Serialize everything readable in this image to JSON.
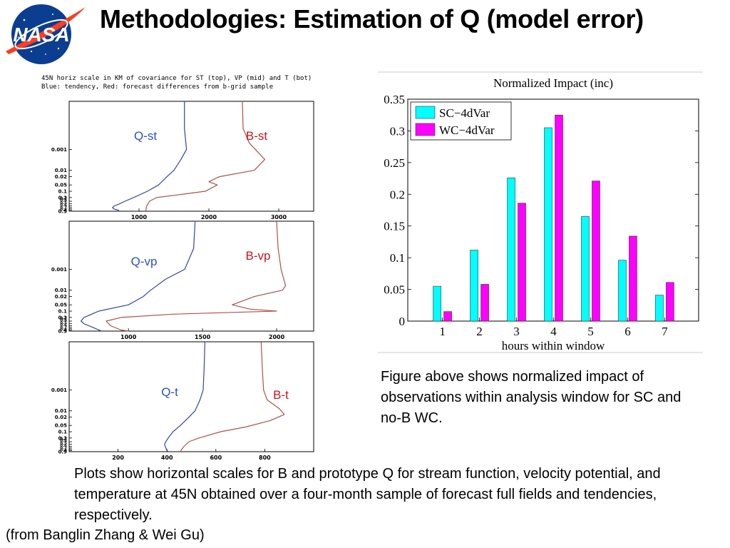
{
  "slide": {
    "title": "Methodologies: Estimation of Q (model error)",
    "logo_text": "NASA",
    "profiles_caption": [
      "45N horiz scale in KM of covariance for ST (top), VP (mid) and T (bot)",
      "Blue: tendency, Red: forecast differences from b-grid sample"
    ],
    "figure_description": "Figure above shows normalized impact of observations within analysis window for SC and no-B WC.",
    "plots_description": "Plots show horizontal scales for B and prototype Q for stream function, velocity potential, and temperature at  45N obtained over a four-month sample of forecast full fields and tendencies, respectively.",
    "credit": "(from Banglin Zhang & Wei Gu)"
  },
  "colors": {
    "q_curve": "#3344a8",
    "b_curve": "#b0504a",
    "sc_bar": "#00ffff",
    "wc_bar": "#ff00ff",
    "q_label": "#2a50c8",
    "b_label": "#c8141e"
  },
  "chart_data": [
    {
      "type": "line",
      "panel": "top",
      "y_tick_labels": [
        "0.001",
        "0.01",
        "0.02",
        "0.05",
        "0.1",
        "0.2",
        "0.3",
        "0.4",
        "0.5",
        "0.6",
        "0.7",
        "0.8",
        "0.9"
      ],
      "y_axis_scale": "log, reversed",
      "xlim": [
        0,
        3500
      ],
      "x_ticks": [
        1000,
        2000,
        3000
      ],
      "series": [
        {
          "name": "Q-st",
          "x": [
            1650,
            1650,
            1680,
            1600,
            1500,
            1400,
            1280,
            1120,
            920,
            800,
            720,
            650,
            620,
            640,
            700,
            720
          ],
          "y": [
            5e-06,
            0.0001,
            0.001,
            0.003,
            0.01,
            0.02,
            0.05,
            0.1,
            0.2,
            0.3,
            0.4,
            0.5,
            0.6,
            0.7,
            0.8,
            0.9
          ]
        },
        {
          "name": "B-st",
          "x": [
            2480,
            2490,
            2580,
            2800,
            2650,
            2150,
            2000,
            2120,
            1950,
            1550,
            1250,
            1150,
            1130,
            1110,
            1100,
            1100
          ],
          "y": [
            5e-06,
            0.0001,
            0.0005,
            0.003,
            0.01,
            0.02,
            0.035,
            0.05,
            0.1,
            0.15,
            0.2,
            0.3,
            0.4,
            0.5,
            0.7,
            0.9
          ]
        }
      ]
    },
    {
      "type": "line",
      "panel": "middle",
      "y_tick_labels": [
        "0.001",
        "0.01",
        "0.02",
        "0.05",
        "0.1",
        "0.2",
        "0.3",
        "0.4",
        "0.5",
        "0.6",
        "0.7",
        "0.8",
        "0.9"
      ],
      "y_axis_scale": "log, reversed",
      "xlim": [
        600,
        2250
      ],
      "x_ticks": [
        1000,
        1500,
        2000
      ],
      "series": [
        {
          "name": "Q-vp",
          "x": [
            1450,
            1440,
            1380,
            1250,
            1150,
            1100,
            1000,
            800,
            700,
            680,
            700,
            760,
            800,
            820
          ],
          "y": [
            5e-06,
            0.0001,
            0.001,
            0.003,
            0.01,
            0.02,
            0.05,
            0.1,
            0.2,
            0.3,
            0.4,
            0.6,
            0.8,
            0.9
          ]
        },
        {
          "name": "B-vp",
          "x": [
            2000,
            2010,
            2030,
            2060,
            2040,
            1850,
            1700,
            1820,
            2000,
            1300,
            950,
            850,
            880,
            950,
            1000
          ],
          "y": [
            5e-06,
            0.0001,
            0.001,
            0.006,
            0.01,
            0.02,
            0.05,
            0.08,
            0.1,
            0.14,
            0.2,
            0.3,
            0.5,
            0.8,
            0.9
          ]
        }
      ]
    },
    {
      "type": "line",
      "panel": "bottom",
      "y_tick_labels": [
        "0.001",
        "0.01",
        "0.02",
        "0.05",
        "0.1",
        "0.2",
        "0.3",
        "0.4",
        "0.5",
        "0.6",
        "0.7",
        "0.8",
        "0.9"
      ],
      "y_axis_scale": "log, reversed",
      "xlim": [
        0,
        1000
      ],
      "x_ticks": [
        200,
        400,
        600,
        800
      ],
      "series": [
        {
          "name": "Q-t",
          "x": [
            555,
            552,
            548,
            535,
            515,
            490,
            455,
            425,
            405,
            395,
            390,
            395,
            400,
            405
          ],
          "y": [
            5e-06,
            0.0001,
            0.001,
            0.003,
            0.01,
            0.02,
            0.05,
            0.1,
            0.2,
            0.3,
            0.4,
            0.6,
            0.8,
            0.9
          ]
        },
        {
          "name": "B-t",
          "x": [
            785,
            790,
            795,
            810,
            860,
            880,
            820,
            720,
            620,
            530,
            490,
            470,
            460,
            455
          ],
          "y": [
            5e-06,
            0.0001,
            0.001,
            0.003,
            0.008,
            0.015,
            0.03,
            0.06,
            0.1,
            0.2,
            0.3,
            0.5,
            0.7,
            0.9
          ]
        }
      ]
    },
    {
      "type": "bar",
      "title": "Normalized Impact (inc)",
      "xlabel": "hours within window",
      "ylabel": "",
      "categories": [
        "1",
        "2",
        "3",
        "4",
        "5",
        "6",
        "7"
      ],
      "ylim": [
        0,
        0.35
      ],
      "y_ticks": [
        "0",
        "0.05",
        "0.1",
        "0.15",
        "0.2",
        "0.25",
        "0.3",
        "0.35"
      ],
      "legend_position": "top-left",
      "series": [
        {
          "name": "SC−4dVar",
          "values": [
            0.055,
            0.112,
            0.226,
            0.305,
            0.165,
            0.096,
            0.041
          ]
        },
        {
          "name": "WC−4dVar",
          "values": [
            0.015,
            0.058,
            0.186,
            0.325,
            0.221,
            0.134,
            0.061
          ]
        }
      ]
    }
  ]
}
